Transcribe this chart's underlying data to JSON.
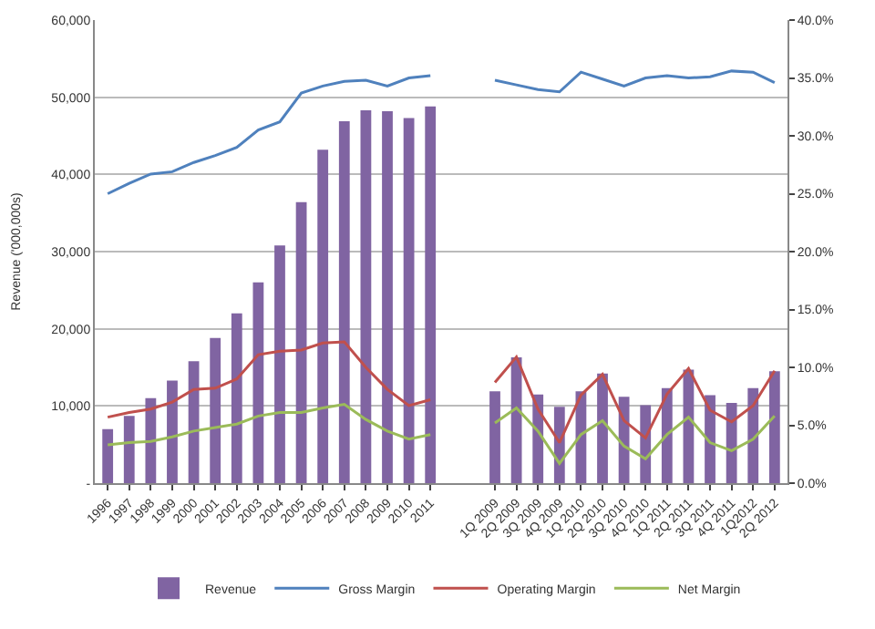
{
  "chart_data": {
    "type": "bar",
    "ylabel": "Revenue ('000,000s)",
    "categories": [
      "1996",
      "1997",
      "1998",
      "1999",
      "2000",
      "2001",
      "2002",
      "2003",
      "2004",
      "2005",
      "2006",
      "2007",
      "2008",
      "2009",
      "2010",
      "2011",
      null,
      null,
      "1Q 2009",
      "2Q 2009",
      "3Q 2009",
      "4Q 2009",
      "1Q 2010",
      "2Q 2010",
      "3Q 2010",
      "4Q 2010",
      "1Q 2011",
      "2Q 2011",
      "3Q 2011",
      "4Q 2011",
      "1Q2012",
      "2Q 2012"
    ],
    "series": [
      {
        "name": "Revenue",
        "color": "#8064a2",
        "values": [
          7000,
          8700,
          11000,
          13300,
          15800,
          18800,
          22000,
          26000,
          30800,
          36400,
          43200,
          46900,
          48300,
          48200,
          47300,
          48800,
          null,
          null,
          11900,
          16300,
          11500,
          9900,
          11900,
          14200,
          11200,
          10100,
          12300,
          14700,
          11400,
          10400,
          12300,
          14500
        ]
      },
      {
        "name": "Gross Margin",
        "type": "line",
        "axis": "y2",
        "color": "#4f81bd",
        "values": [
          25.0,
          25.9,
          26.7,
          26.9,
          27.7,
          28.3,
          29.0,
          30.5,
          31.2,
          33.7,
          34.3,
          34.7,
          34.8,
          34.3,
          35.0,
          35.2,
          null,
          null,
          34.8,
          34.4,
          34.0,
          33.8,
          35.5,
          34.9,
          34.3,
          35.0,
          35.2,
          35.0,
          35.1,
          35.6,
          35.5,
          34.6
        ]
      },
      {
        "name": "Operating Margin",
        "type": "line",
        "axis": "y2",
        "color": "#c0504d",
        "values": [
          5.7,
          6.1,
          6.4,
          7.0,
          8.1,
          8.2,
          9.0,
          11.1,
          11.4,
          11.5,
          12.1,
          12.2,
          10.0,
          8.1,
          6.7,
          7.2,
          null,
          null,
          8.7,
          10.9,
          6.4,
          3.5,
          7.6,
          9.4,
          5.4,
          3.9,
          7.7,
          9.9,
          6.3,
          5.3,
          6.7,
          9.7
        ]
      },
      {
        "name": "Net Margin",
        "type": "line",
        "axis": "y2",
        "color": "#9bbb59",
        "values": [
          3.3,
          3.5,
          3.6,
          4.0,
          4.5,
          4.8,
          5.1,
          5.8,
          6.1,
          6.1,
          6.5,
          6.8,
          5.5,
          4.5,
          3.8,
          4.2,
          null,
          null,
          5.2,
          6.5,
          4.5,
          1.7,
          4.2,
          5.4,
          3.2,
          2.1,
          4.2,
          5.7,
          3.5,
          2.8,
          3.8,
          5.8
        ]
      }
    ],
    "ylim": [
      0,
      60000
    ],
    "yticks": [
      {
        "value": 0,
        "label": "-"
      },
      {
        "value": 10000,
        "label": "10,000"
      },
      {
        "value": 20000,
        "label": "20,000"
      },
      {
        "value": 30000,
        "label": "30,000"
      },
      {
        "value": 40000,
        "label": "40,000"
      },
      {
        "value": 50000,
        "label": "50,000"
      },
      {
        "value": 60000,
        "label": "60,000"
      }
    ],
    "y2lim": [
      0,
      40
    ],
    "y2ticks": [
      {
        "value": 0,
        "label": "0.0%"
      },
      {
        "value": 5,
        "label": "5.0%"
      },
      {
        "value": 10,
        "label": "10.0%"
      },
      {
        "value": 15,
        "label": "15.0%"
      },
      {
        "value": 20,
        "label": "20.0%"
      },
      {
        "value": 25,
        "label": "25.0%"
      },
      {
        "value": 30,
        "label": "30.0%"
      },
      {
        "value": 35,
        "label": "35.0%"
      },
      {
        "value": 40,
        "label": "40.0%"
      }
    ],
    "grid": "y",
    "legend": "bottom",
    "marker": "none",
    "line_style": "solid"
  }
}
